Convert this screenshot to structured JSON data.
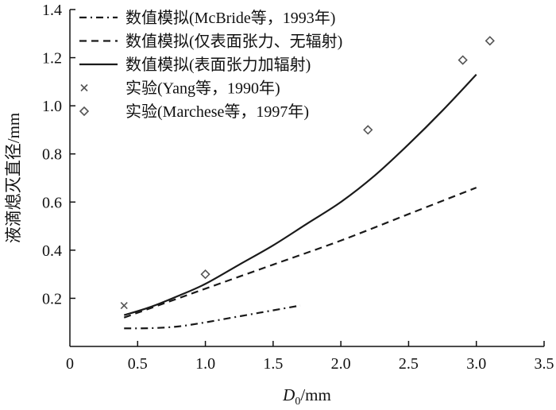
{
  "chart_data": {
    "type": "line",
    "xlabel": "D0/mm",
    "xlabel_main": "D",
    "xlabel_sub": "0",
    "xlabel_unit": "/mm",
    "ylabel": "液滴熄灭直径/mm",
    "xlim": [
      0,
      3.5
    ],
    "ylim": [
      0,
      1.4
    ],
    "xticks": [
      "0",
      "0.5",
      "1.0",
      "1.5",
      "2.0",
      "2.5",
      "3.0",
      "3.5"
    ],
    "yticks": [
      "0.2",
      "0.4",
      "0.6",
      "0.8",
      "1.0",
      "1.2",
      "1.4"
    ],
    "grid": false,
    "legend_position": "top-left",
    "series": [
      {
        "name": "数值模拟(McBride等，1993年)",
        "kind": "line",
        "dash": "dashdot",
        "color": "#1a1a1a",
        "x": [
          0.4,
          0.6,
          0.8,
          1.0,
          1.2,
          1.4,
          1.6,
          1.7
        ],
        "y": [
          0.075,
          0.076,
          0.083,
          0.1,
          0.12,
          0.14,
          0.16,
          0.17
        ]
      },
      {
        "name": "数值模拟(仅表面张力、无辐射)",
        "kind": "line",
        "dash": "dashed",
        "color": "#1a1a1a",
        "x": [
          0.4,
          0.6,
          0.8,
          1.0,
          1.5,
          2.0,
          2.5,
          3.0
        ],
        "y": [
          0.12,
          0.16,
          0.2,
          0.24,
          0.34,
          0.44,
          0.55,
          0.66
        ]
      },
      {
        "name": "数值模拟(表面张力加辐射)",
        "kind": "line",
        "dash": "solid",
        "color": "#1a1a1a",
        "x": [
          0.4,
          0.6,
          0.8,
          1.0,
          1.25,
          1.5,
          1.75,
          2.0,
          2.25,
          2.5,
          2.75,
          3.0
        ],
        "y": [
          0.13,
          0.165,
          0.21,
          0.26,
          0.34,
          0.42,
          0.51,
          0.6,
          0.71,
          0.84,
          0.98,
          1.13
        ]
      },
      {
        "name": "实验(Yang等，1990年)",
        "kind": "scatter",
        "marker": "x",
        "color": "#555555",
        "x": [
          0.4
        ],
        "y": [
          0.17
        ]
      },
      {
        "name": "实验(Marchese等，1997年)",
        "kind": "scatter",
        "marker": "diamond",
        "color": "#555555",
        "x": [
          1.0,
          2.2,
          2.9,
          3.1
        ],
        "y": [
          0.3,
          0.9,
          1.19,
          1.27
        ]
      }
    ]
  }
}
